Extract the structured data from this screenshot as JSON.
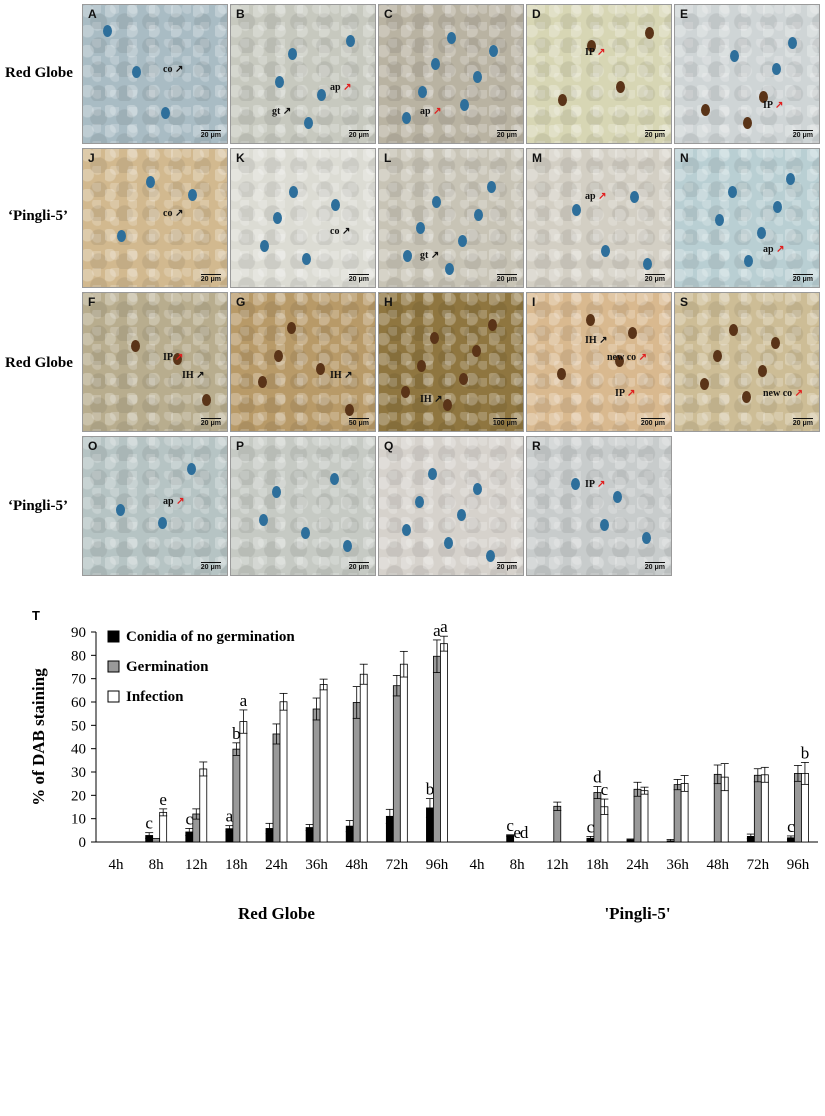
{
  "figure": {
    "row_labels": [
      "Red Globe",
      "‘Pingli-5’",
      "Red Globe",
      "‘Pingli-5’"
    ],
    "panels": [
      {
        "letter": "A",
        "scale": "20 μm",
        "bg": "#a9bcc4",
        "labels": [
          "co"
        ]
      },
      {
        "letter": "B",
        "scale": "20 μm",
        "bg": "#c7c9bf",
        "labels": [
          "ap",
          "gt"
        ]
      },
      {
        "letter": "C",
        "scale": "20 μm",
        "bg": "#b9b3a2",
        "labels": [
          "ap"
        ]
      },
      {
        "letter": "D",
        "scale": "20 μm",
        "bg": "#d7d6b4",
        "labels": [
          "IP"
        ]
      },
      {
        "letter": "E",
        "scale": "20 μm",
        "bg": "#cfd5d6",
        "labels": [
          "IP"
        ]
      },
      {
        "letter": "J",
        "scale": "20 μm",
        "bg": "#d2b98f",
        "labels": [
          "co"
        ]
      },
      {
        "letter": "K",
        "scale": "20 μm",
        "bg": "#dcdcd4",
        "labels": [
          "co"
        ]
      },
      {
        "letter": "L",
        "scale": "20 μm",
        "bg": "#c8c4b6",
        "labels": [
          "gt"
        ]
      },
      {
        "letter": "M",
        "scale": "20 μm",
        "bg": "#d3cfc4",
        "labels": [
          "ap"
        ]
      },
      {
        "letter": "N",
        "scale": "20 μm",
        "bg": "#b9cfd3",
        "labels": [
          "ap"
        ]
      },
      {
        "letter": "F",
        "scale": "20 μm",
        "bg": "#b8ad8e",
        "labels": [
          "IP",
          "IH"
        ]
      },
      {
        "letter": "G",
        "scale": "50 μm",
        "bg": "#b89a68",
        "labels": [
          "IH"
        ]
      },
      {
        "letter": "H",
        "scale": "100 μm",
        "bg": "#8f7640",
        "labels": [
          "IH"
        ]
      },
      {
        "letter": "I",
        "scale": "200 μm",
        "bg": "#d9b98f",
        "labels": [
          "IH",
          "IP",
          "new co"
        ]
      },
      {
        "letter": "S",
        "scale": "20 μm",
        "bg": "#cdbd96",
        "labels": [
          "new co"
        ]
      },
      {
        "letter": "O",
        "scale": "20 μm",
        "bg": "#b6c4c4",
        "labels": [
          "ap"
        ]
      },
      {
        "letter": "P",
        "scale": "20 μm",
        "bg": "#c6cac4",
        "labels": []
      },
      {
        "letter": "Q",
        "scale": "20 μm",
        "bg": "#d6d2cc",
        "labels": []
      },
      {
        "letter": "R",
        "scale": "20 μm",
        "bg": "#c8cccc",
        "labels": [
          "IP"
        ]
      }
    ]
  },
  "chart_data": {
    "type": "bar",
    "panel_letter": "T",
    "ylabel": "% of DAB staining",
    "ylim": [
      0,
      90
    ],
    "yticks": [
      0,
      10,
      20,
      30,
      40,
      50,
      60,
      70,
      80,
      90
    ],
    "categories": [
      "4h",
      "8h",
      "12h",
      "18h",
      "24h",
      "36h",
      "48h",
      "72h",
      "96h",
      "4h",
      "8h",
      "12h",
      "18h",
      "24h",
      "36h",
      "48h",
      "72h",
      "96h"
    ],
    "group_labels": [
      "Red Globe",
      "'Pingli-5'"
    ],
    "legend_position": "top-left",
    "series": [
      {
        "name": "Conidia of no germination",
        "color": "#000000",
        "values": [
          0,
          2.8,
          4.3,
          5.7,
          5.8,
          6.2,
          6.8,
          11,
          14.6,
          0,
          2.8,
          0,
          1.6,
          1,
          0.5,
          0,
          2.4,
          1.8
        ],
        "errors": [
          0,
          1.2,
          1.5,
          1.3,
          2.2,
          1.3,
          2.4,
          3,
          4,
          0,
          0.3,
          0,
          0.8,
          0.3,
          0.6,
          0,
          1,
          0.8
        ],
        "letters": [
          "",
          "c",
          "c",
          "a",
          "",
          "",
          "",
          "",
          "b",
          "",
          "c",
          "",
          "c",
          "",
          "",
          "",
          "",
          "c"
        ]
      },
      {
        "name": "Germination",
        "color": "#999999",
        "values": [
          0,
          1.5,
          12,
          39.8,
          46.3,
          57,
          59.8,
          67,
          79.6,
          0,
          0,
          15.3,
          21.2,
          22.6,
          24.6,
          29,
          28.6,
          29.4
        ],
        "errors": [
          0,
          0,
          2.2,
          2.7,
          4.3,
          4.7,
          6.8,
          4.4,
          7,
          0,
          0,
          1.8,
          2.6,
          3,
          2.2,
          4,
          2.8,
          3.4
        ],
        "letters": [
          "",
          "",
          "",
          "b",
          "",
          "",
          "",
          "",
          "a",
          "",
          "e",
          "",
          "d",
          "",
          "",
          "",
          "",
          ""
        ]
      },
      {
        "name": "Infection",
        "color": "#ffffff",
        "values": [
          0,
          12.7,
          31.3,
          51.6,
          60.1,
          67.5,
          71.9,
          76.2,
          85,
          0,
          0,
          0,
          15.1,
          22,
          25.1,
          27.8,
          28.8,
          29.4
        ],
        "errors": [
          0,
          1.5,
          3,
          5,
          3.6,
          2.3,
          4.3,
          5.5,
          3.2,
          0,
          0,
          0,
          3.3,
          1.5,
          3.4,
          5.8,
          3.2,
          4.7
        ],
        "letters": [
          "",
          "e",
          "",
          "a",
          "",
          "",
          "",
          "",
          "a",
          "",
          "d",
          "",
          "c",
          "",
          "",
          "",
          "",
          "b"
        ]
      }
    ]
  }
}
